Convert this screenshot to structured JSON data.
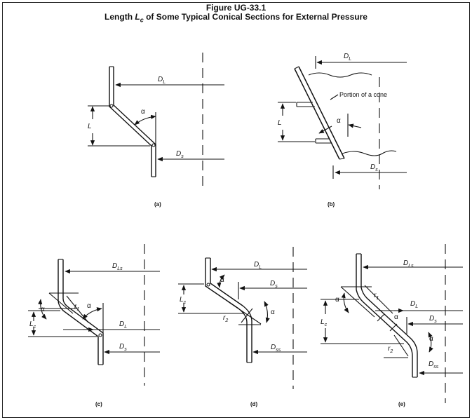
{
  "figure": {
    "number": "Figure UG-33.1",
    "caption_prefix": "Length ",
    "caption_symbol": "L",
    "caption_subscript": "c",
    "caption_suffix": " of Some Typical Conical Sections for External Pressure"
  },
  "panels": {
    "a": {
      "tag": "(a)",
      "DL": "D",
      "DL_sub": "L",
      "Ds": "D",
      "Ds_sub": "s",
      "L": "L",
      "alpha": "α"
    },
    "b": {
      "tag": "(b)",
      "DL": "D",
      "DL_sub": "L",
      "Ds": "D",
      "Ds_sub": "s",
      "L": "L",
      "alpha": "α",
      "note": "Portion of a cone"
    },
    "c": {
      "tag": "(c)",
      "DLs": "D",
      "DLs_sub": "Ls",
      "DL": "D",
      "DL_sub": "L",
      "Ds": "D",
      "Ds_sub": "s",
      "Lc": "L",
      "Lc_sub": "c",
      "r1": "r",
      "r1_sub": "1",
      "alpha": "α"
    },
    "d": {
      "tag": "(d)",
      "DL": "D",
      "DL_sub": "L",
      "Ds": "D",
      "Ds_sub": "s",
      "Dss": "D",
      "Dss_sub": "ss",
      "Lc": "L",
      "Lc_sub": "c",
      "r2": "r",
      "r2_sub": "2",
      "alpha": "α"
    },
    "e": {
      "tag": "(e)",
      "DLs": "D",
      "DLs_sub": "Ls",
      "DL": "D",
      "DL_sub": "L",
      "Ds": "D",
      "Ds_sub": "s",
      "Dss": "D",
      "Dss_sub": "ss",
      "Lc": "L",
      "Lc_sub": "c",
      "r1": "r",
      "r1_sub": "1",
      "r2": "r",
      "r2_sub": "2",
      "alpha": "α"
    }
  }
}
